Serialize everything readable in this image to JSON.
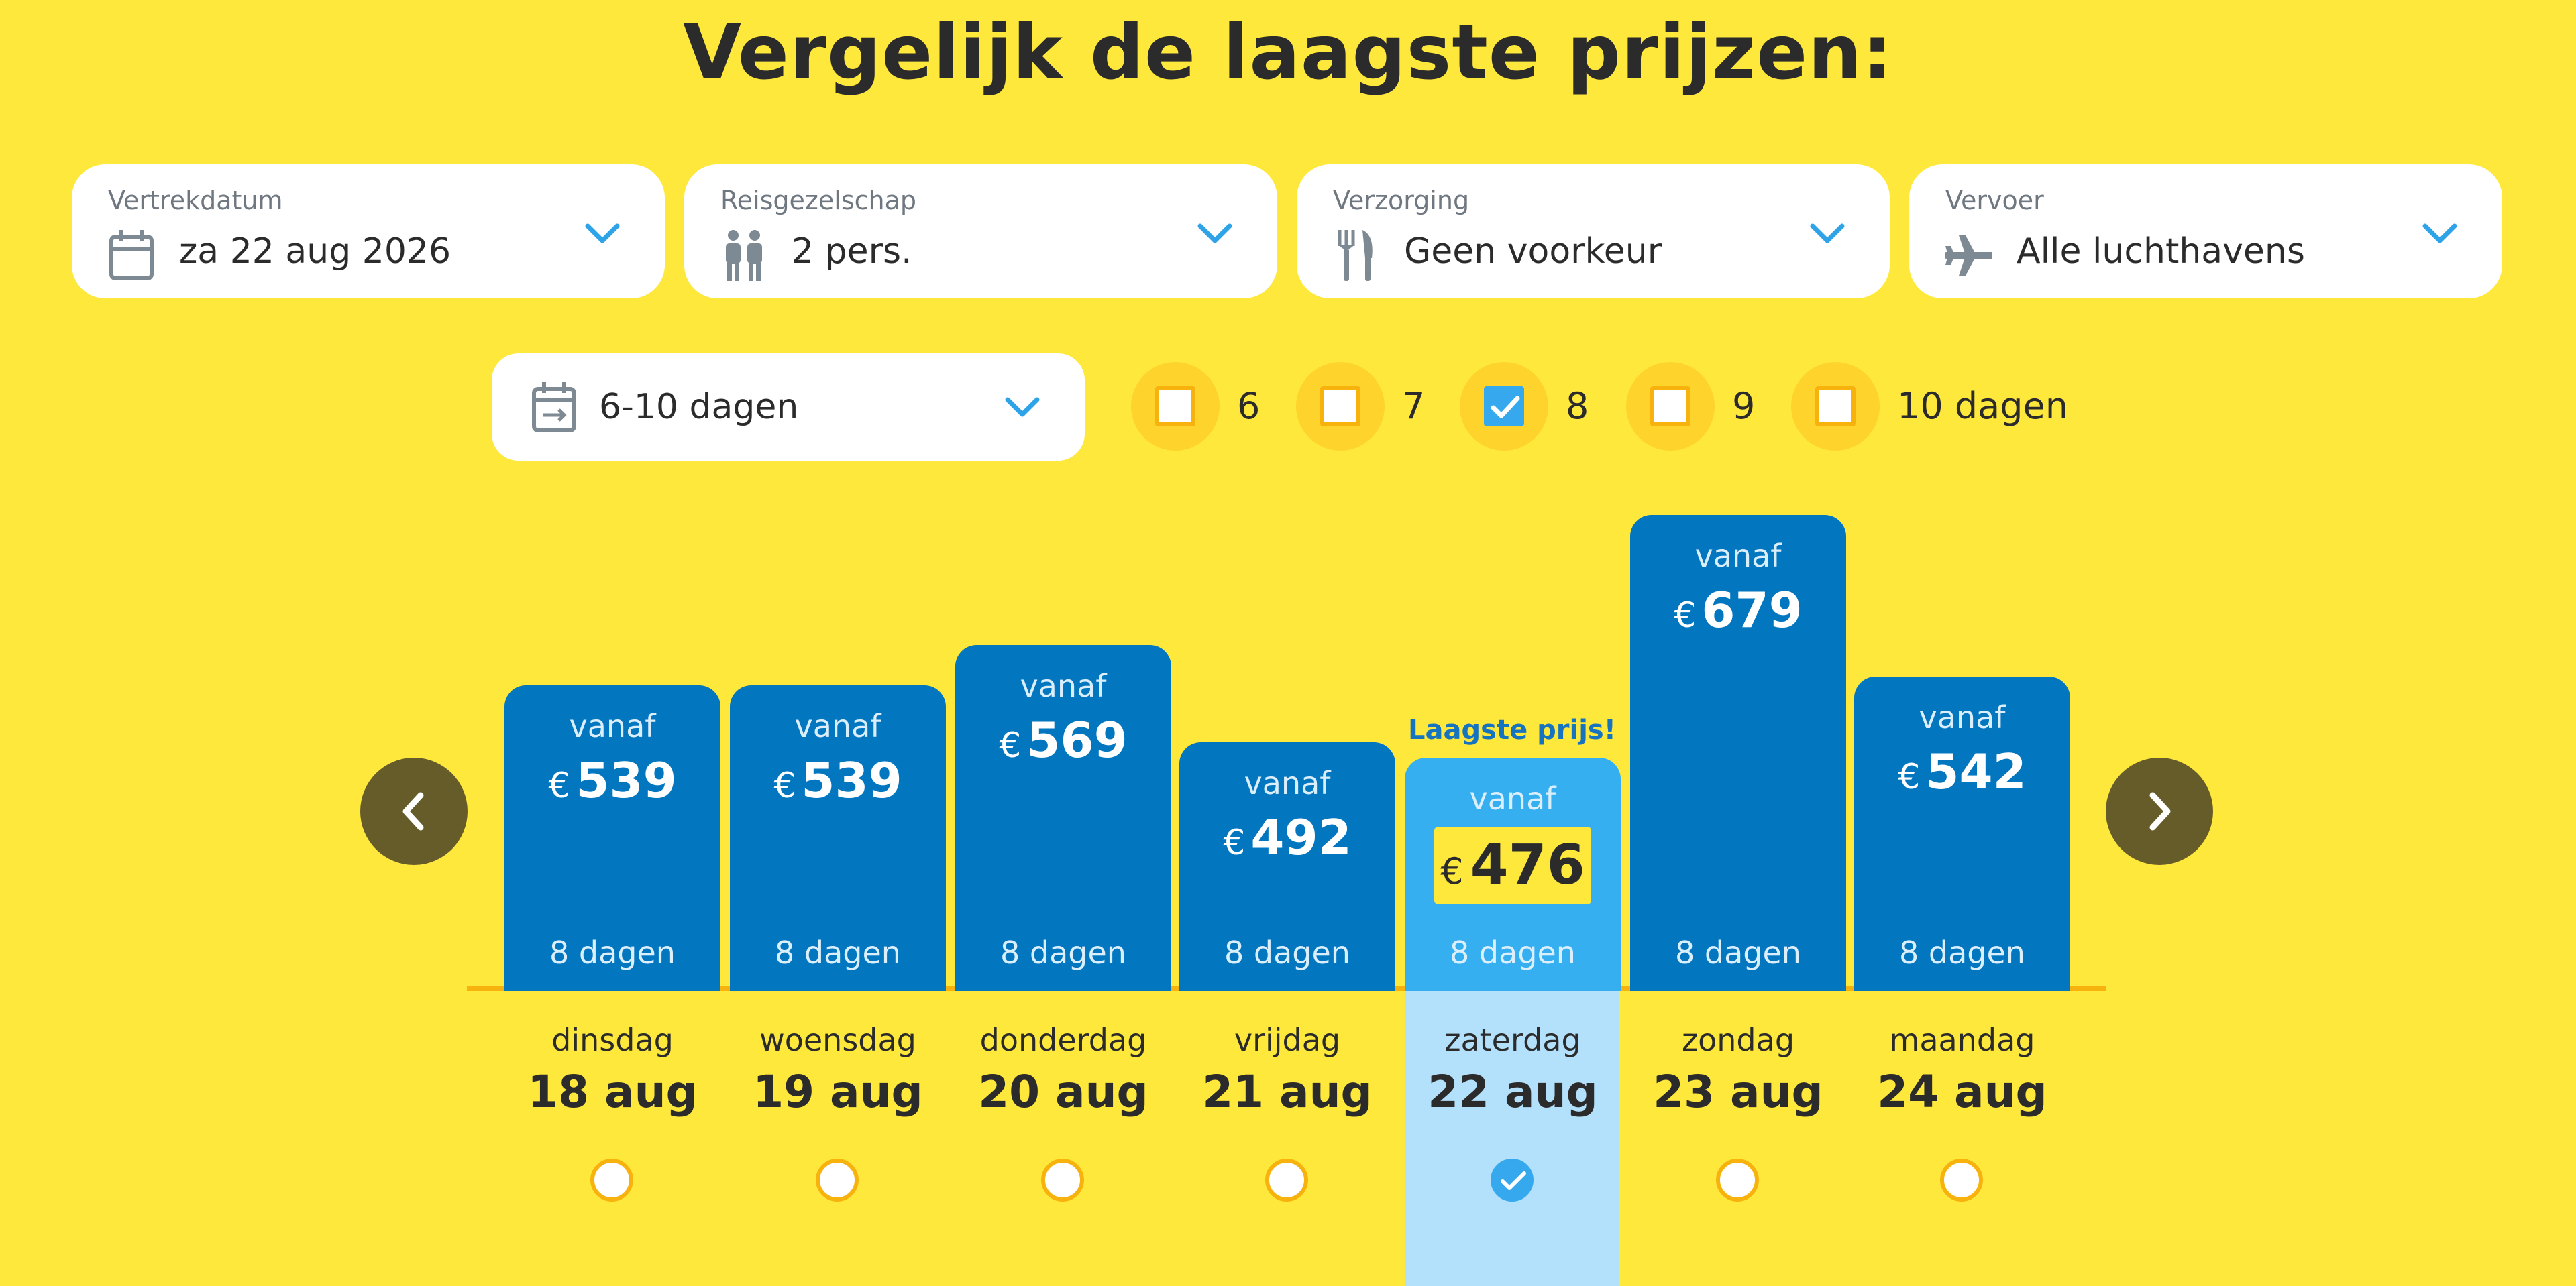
{
  "title": "Vergelijk de laagste prijzen:",
  "filters": [
    {
      "label": "Vertrekdatum",
      "value": "za 22 aug 2026",
      "icon": "calendar-icon"
    },
    {
      "label": "Reisgezelschap",
      "value": "2 pers.",
      "icon": "people-icon"
    },
    {
      "label": "Verzorging",
      "value": "Geen voorkeur",
      "icon": "cutlery-icon"
    },
    {
      "label": "Vervoer",
      "value": "Alle luchthavens",
      "icon": "airplane-icon"
    }
  ],
  "duration": {
    "value": "6-10 dagen",
    "icon": "calendar-range-icon"
  },
  "duration_options": [
    {
      "label": "6",
      "checked": false
    },
    {
      "label": "7",
      "checked": false
    },
    {
      "label": "8",
      "checked": true
    },
    {
      "label": "9",
      "checked": false
    },
    {
      "label": "10 dagen",
      "checked": false
    }
  ],
  "lowest_label": "Laagste prijs!",
  "currency": "€",
  "bar_from_label": "vanaf",
  "bars": [
    {
      "weekday": "dinsdag",
      "date": "18 aug",
      "price": "539",
      "duration": "8 dagen",
      "selected": false
    },
    {
      "weekday": "woensdag",
      "date": "19 aug",
      "price": "539",
      "duration": "8 dagen",
      "selected": false
    },
    {
      "weekday": "donderdag",
      "date": "20 aug",
      "price": "569",
      "duration": "8 dagen",
      "selected": false
    },
    {
      "weekday": "vrijdag",
      "date": "21 aug",
      "price": "492",
      "duration": "8 dagen",
      "selected": false
    },
    {
      "weekday": "zaterdag",
      "date": "22 aug",
      "price": "476",
      "duration": "8 dagen",
      "selected": true
    },
    {
      "weekday": "zondag",
      "date": "23 aug",
      "price": "679",
      "duration": "8 dagen",
      "selected": false
    },
    {
      "weekday": "maandag",
      "date": "24 aug",
      "price": "542",
      "duration": "8 dagen",
      "selected": false
    }
  ],
  "colors": {
    "background": "#ffe83c",
    "bar": "#0276bf",
    "bar_selected": "#36aff0",
    "checkbox_border": "#f7b20e",
    "accent": "#36a9ee",
    "nav_button": "#665c2a"
  }
}
